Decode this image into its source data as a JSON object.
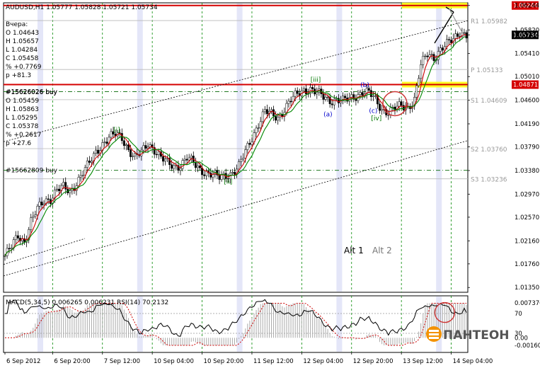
{
  "header": {
    "symbol_line": "AUDUSD,H1  1.05777 1.05828 1.05721 1.05734"
  },
  "info_yesterday": {
    "title": "Вчера:",
    "lines": [
      "O 1.04643",
      "H 1.05657",
      "L 1.04284",
      "C 1.05458",
      "% +0.7769",
      "p +81.3"
    ]
  },
  "info_order": {
    "title": "#15626026 buy",
    "lines": [
      "O 1.05459",
      "H 1.05863",
      "L 1.05295",
      "C 1.05378",
      "% +0.2617",
      "p +27.6"
    ]
  },
  "order_lines": [
    {
      "label": "#15626026 buy",
      "price": 1.0475
    },
    {
      "label": "#15662809 buy",
      "price": 1.03383
    }
  ],
  "levels": [
    {
      "label": "R1 1.05982",
      "price": 1.05982
    },
    {
      "label": "P 1.05133",
      "price": 1.05133
    },
    {
      "label": "S1 1.04609",
      "price": 1.04609
    },
    {
      "label": "S2 1.03760",
      "price": 1.0376
    },
    {
      "label": "S3 1.03236",
      "price": 1.03236
    }
  ],
  "red_lines": [
    {
      "price": 1.06244,
      "tag": "1.06244"
    },
    {
      "price": 1.04871,
      "tag": "1.04871"
    }
  ],
  "current_price_tag": "1.05734",
  "alt_labels": {
    "alt1": "Alt 1",
    "alt2": "Alt 2"
  },
  "waves": [
    {
      "text": "[i]",
      "color": "#007700"
    },
    {
      "text": "[ii]",
      "color": "#007700"
    },
    {
      "text": "[iii]",
      "color": "#007700"
    },
    {
      "text": "[iv]",
      "color": "#007700"
    },
    {
      "text": "(a)",
      "color": "#0000cc"
    },
    {
      "text": "(b)",
      "color": "#0000cc"
    },
    {
      "text": "(c)",
      "color": "#0000cc"
    }
  ],
  "indicator": {
    "title": "MACD(5,34,5) 0.006265 0.006231 RSI(14) 70.2132",
    "axis_labels": [
      {
        "text": "0.007376",
        "value": 0.007376
      },
      {
        "text": "70",
        "value": 70
      },
      {
        "text": "30",
        "value": 30
      },
      {
        "text": "0.00",
        "value": 0
      },
      {
        "text": "-0.00160",
        "value": -0.0016
      }
    ]
  },
  "logo": {
    "text": "ПАНТЕОН"
  },
  "colors": {
    "candle": "#000000",
    "ma_fast": "#cc0000",
    "ma_slow": "#008800",
    "red_level": "#d40000",
    "highlight": "#ffff00",
    "grid": "#008800",
    "session_band": "#e4e6f8",
    "logo_orange": "#f39200"
  },
  "chart_data": {
    "type": "candlestick",
    "title": "AUDUSD,H1",
    "ylim": [
      1.01267,
      1.0629
    ],
    "x_ticks": [
      "6 Sep 2012",
      "6 Sep 20:00",
      "7 Sep 12:00",
      "10 Sep 04:00",
      "10 Sep 20:00",
      "11 Sep 12:00",
      "12 Sep 04:00",
      "12 Sep 20:00",
      "13 Sep 12:00",
      "14 Sep 04:00"
    ],
    "y_ticks": [
      1.06244,
      1.0582,
      1.05734,
      1.0541,
      1.0501,
      1.046,
      1.0419,
      1.0379,
      1.0338,
      1.0297,
      1.0257,
      1.0216,
      1.0176,
      1.0135
    ],
    "close_path": [
      [
        0,
        1.019
      ],
      [
        3,
        1.0205
      ],
      [
        6,
        1.0225
      ],
      [
        9,
        1.0215
      ],
      [
        12,
        1.025
      ],
      [
        15,
        1.027
      ],
      [
        18,
        1.0285
      ],
      [
        21,
        1.029
      ],
      [
        24,
        1.0305
      ],
      [
        27,
        1.0308
      ],
      [
        30,
        1.03
      ],
      [
        33,
        1.0318
      ],
      [
        36,
        1.0335
      ],
      [
        39,
        1.035
      ],
      [
        42,
        1.037
      ],
      [
        45,
        1.0385
      ],
      [
        48,
        1.0395
      ],
      [
        51,
        1.04
      ],
      [
        54,
        1.0395
      ],
      [
        57,
        1.0375
      ],
      [
        60,
        1.036
      ],
      [
        63,
        1.0368
      ],
      [
        66,
        1.0385
      ],
      [
        69,
        1.0375
      ],
      [
        72,
        1.036
      ],
      [
        75,
        1.035
      ],
      [
        78,
        1.0345
      ],
      [
        81,
        1.0348
      ],
      [
        84,
        1.036
      ],
      [
        87,
        1.035
      ],
      [
        90,
        1.034
      ],
      [
        93,
        1.0335
      ],
      [
        96,
        1.033
      ],
      [
        99,
        1.0325
      ],
      [
        102,
        1.033
      ],
      [
        105,
        1.0335
      ],
      [
        108,
        1.0345
      ],
      [
        111,
        1.037
      ],
      [
        114,
        1.0395
      ],
      [
        117,
        1.042
      ],
      [
        120,
        1.044
      ],
      [
        123,
        1.0435
      ],
      [
        126,
        1.043
      ],
      [
        129,
        1.0445
      ],
      [
        132,
        1.046
      ],
      [
        135,
        1.047
      ],
      [
        138,
        1.0478
      ],
      [
        141,
        1.048
      ],
      [
        144,
        1.0472
      ],
      [
        147,
        1.0465
      ],
      [
        150,
        1.046
      ],
      [
        153,
        1.0462
      ],
      [
        156,
        1.0458
      ],
      [
        159,
        1.0462
      ],
      [
        162,
        1.0468
      ],
      [
        165,
        1.0475
      ],
      [
        168,
        1.0472
      ],
      [
        171,
        1.046
      ],
      [
        174,
        1.0445
      ],
      [
        177,
        1.044
      ],
      [
        180,
        1.0445
      ],
      [
        183,
        1.045
      ],
      [
        186,
        1.0448
      ],
      [
        189,
        1.0462
      ],
      [
        192,
        1.052
      ],
      [
        195,
        1.054
      ],
      [
        198,
        1.0535
      ],
      [
        201,
        1.0548
      ],
      [
        204,
        1.0556
      ],
      [
        207,
        1.0566
      ],
      [
        210,
        1.058
      ],
      [
        213,
        1.0573
      ]
    ]
  }
}
